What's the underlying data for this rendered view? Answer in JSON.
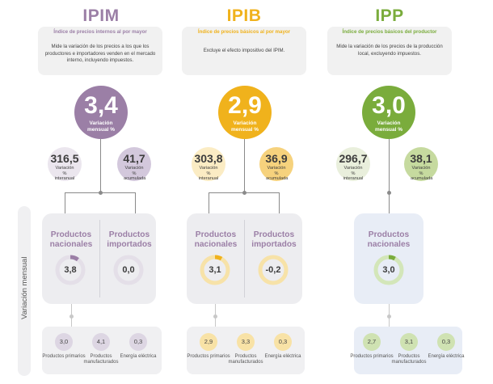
{
  "side_label": "Variación mensual",
  "colors": {
    "purple": "#9b7fa6",
    "gold": "#f0b21c",
    "green": "#7aac3c",
    "grey": "#8a8a8a"
  },
  "ipim": {
    "title": "IPIM",
    "subtitle": "Índice de precios internos al por mayor",
    "description": "Mide la variación de los precios a los que los productores e importadores venden en el mercado interno, incluyendo impuestos.",
    "monthly": {
      "value": "3,4",
      "label": "Variación mensual %"
    },
    "interanual": {
      "value": "316,5",
      "label": "Variación % interanual"
    },
    "acumulada": {
      "value": "41,7",
      "label": "Variación % acumulada"
    },
    "nacionales": {
      "label": "Productos nacionales",
      "value": "3,8"
    },
    "importados": {
      "label": "Productos importados",
      "value": "0,0"
    },
    "breakdown": [
      {
        "value": "3,0",
        "label": "Productos primarios"
      },
      {
        "value": "4,1",
        "label": "Productos manufacturados"
      },
      {
        "value": "0,3",
        "label": "Energía eléctrica"
      }
    ]
  },
  "ipib": {
    "title": "IPIB",
    "subtitle": "Índice de precios básicos al por mayor",
    "description": "Excluye el efecto impositivo del IPIM.",
    "monthly": {
      "value": "2,9",
      "label": "Variación mensual %"
    },
    "interanual": {
      "value": "303,8",
      "label": "Variación % interanual"
    },
    "acumulada": {
      "value": "36,9",
      "label": "Variación % acumulada"
    },
    "nacionales": {
      "label": "Productos nacionales",
      "value": "3,1"
    },
    "importados": {
      "label": "Productos importados",
      "value": "-0,2"
    },
    "breakdown": [
      {
        "value": "2,9",
        "label": "Productos primarios"
      },
      {
        "value": "3,3",
        "label": "Productos manufacturados"
      },
      {
        "value": "0,3",
        "label": "Energía eléctrica"
      }
    ]
  },
  "ipp": {
    "title": "IPP",
    "subtitle": "Índice de precios básicos del productor",
    "description": "Mide la variación de los precios de la producción local, excluyendo impuestos.",
    "monthly": {
      "value": "3,0",
      "label": "Variación mensual %"
    },
    "interanual": {
      "value": "296,7",
      "label": "Variación % interanual"
    },
    "acumulada": {
      "value": "38,1",
      "label": "Variación % acumulada"
    },
    "nacionales": {
      "label": "Productos nacionales",
      "value": "3,0"
    },
    "breakdown": [
      {
        "value": "2,7",
        "label": "Productos primarios"
      },
      {
        "value": "3,1",
        "label": "Productos manufacturados"
      },
      {
        "value": "0,3",
        "label": "Energía eléctrica"
      }
    ]
  }
}
